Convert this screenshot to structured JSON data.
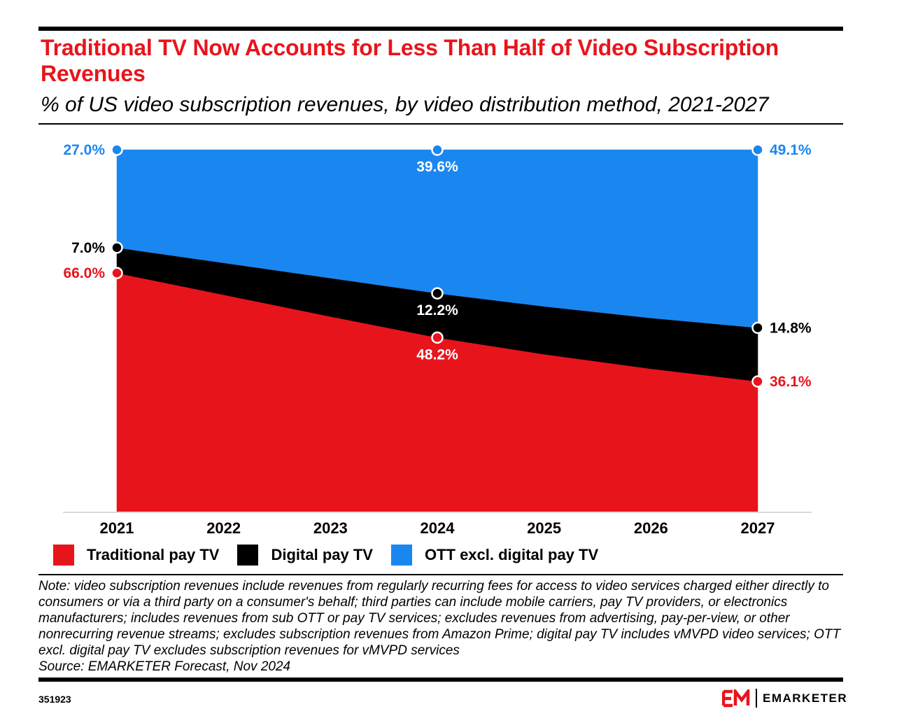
{
  "title": "Traditional TV Now Accounts for Less Than Half of Video Subscription Revenues",
  "subtitle": "% of US video subscription revenues, by video distribution method, 2021-2027",
  "chart_data": {
    "type": "area",
    "stacked": true,
    "percent_stacked": true,
    "x": [
      "2021",
      "2022",
      "2023",
      "2024",
      "2025",
      "2026",
      "2027"
    ],
    "series": [
      {
        "name": "Traditional pay TV",
        "color": "#e8141c",
        "values": [
          66.0,
          60.0,
          54.0,
          48.2,
          43.6,
          39.6,
          36.1
        ],
        "labels": {
          "2021": "66.0%",
          "2024": "48.2%",
          "2027": "36.1%"
        }
      },
      {
        "name": "Digital pay TV",
        "color": "#000000",
        "values": [
          7.0,
          8.8,
          10.6,
          12.2,
          13.2,
          14.0,
          14.8
        ],
        "labels": {
          "2021": "7.0%",
          "2024": "12.2%",
          "2027": "14.8%"
        }
      },
      {
        "name": "OTT excl. digital pay TV",
        "color": "#1a87f0",
        "values": [
          27.0,
          31.2,
          35.4,
          39.6,
          43.2,
          46.4,
          49.1
        ],
        "labels": {
          "2021": "27.0%",
          "2024": "39.6%",
          "2027": "49.1%"
        }
      }
    ],
    "ylim": [
      0,
      100
    ],
    "xlabel": "",
    "ylabel": "",
    "grid": false,
    "legend_position": "bottom-left"
  },
  "legend": [
    {
      "label": "Traditional pay TV",
      "color": "#e8141c"
    },
    {
      "label": "Digital pay TV",
      "color": "#000000"
    },
    {
      "label": "OTT excl. digital pay TV",
      "color": "#1a87f0"
    }
  ],
  "note": "Note: video subscription revenues include revenues from regularly recurring fees for access to video services charged either directly to consumers or via a third party on a consumer's behalf; third parties can include mobile carriers, pay TV providers, or electronics manufacturers; includes revenues from sub OTT or pay TV services; excludes revenues from advertising, pay-per-view, or other nonrecurring revenue streams; excludes subscription revenues from Amazon Prime; digital pay TV includes vMVPD video services; OTT excl. digital pay TV excludes subscription revenues for vMVPD services",
  "source": "Source: EMARKETER Forecast, Nov 2024",
  "chart_id": "351923",
  "brand": {
    "logo_text": "EM",
    "name": "EMARKETER",
    "color": "#e8141c"
  }
}
